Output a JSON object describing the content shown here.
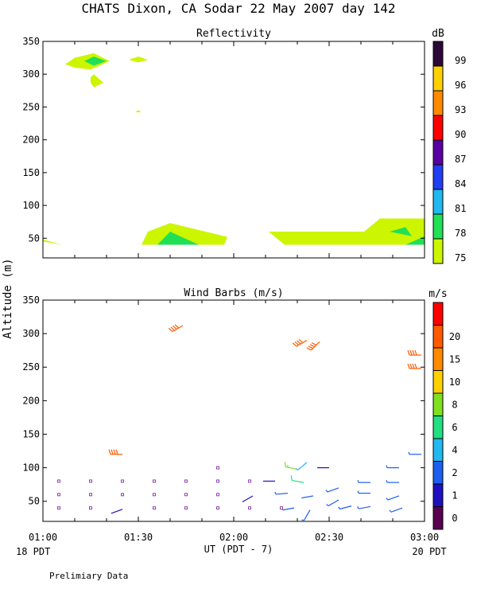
{
  "figure": {
    "title": "CHATS Dixon, CA  Sodar  22 May 2007  day 142",
    "ylabel": "Altitude (m)",
    "xlabel": "UT  (PDT - 7)",
    "left_time_label": "18 PDT",
    "right_time_label": "20 PDT",
    "footer": "Prelimiary Data"
  },
  "chart_data": [
    {
      "type": "heatmap",
      "title": "Reflectivity",
      "x_ticks": [
        "01:00",
        "01:30",
        "02:00",
        "02:30",
        "03:00"
      ],
      "x_range_minutes": [
        60,
        180
      ],
      "y_ticks": [
        50,
        100,
        150,
        200,
        250,
        300,
        350
      ],
      "ylim": [
        20,
        350
      ],
      "colorbar": {
        "unit": "dB",
        "levels": [
          75,
          78,
          81,
          84,
          87,
          90,
          93,
          96,
          99
        ],
        "colors": [
          "#ccf500",
          "#22e055",
          "#22b8f0",
          "#1f3ff0",
          "#5a00a0",
          "#ff0000",
          "#ff8a00",
          "#ffd000",
          "#2a0838"
        ]
      },
      "regions": [
        {
          "level": 75,
          "points": [
            [
              60,
              45
            ],
            [
              60,
              48
            ],
            [
              66,
              40
            ]
          ]
        },
        {
          "level": 75,
          "points": [
            [
              67,
              315
            ],
            [
              70,
              325
            ],
            [
              76,
              332
            ],
            [
              81,
              320
            ],
            [
              75,
              307
            ],
            [
              70,
              310
            ]
          ]
        },
        {
          "level": 78,
          "points": [
            [
              73,
              320
            ],
            [
              76,
              327
            ],
            [
              80,
              320
            ],
            [
              76,
              313
            ]
          ]
        },
        {
          "level": 75,
          "points": [
            [
              75,
              295
            ],
            [
              76,
              300
            ],
            [
              79,
              287
            ],
            [
              76,
              280
            ],
            [
              75,
              287
            ]
          ]
        },
        {
          "level": 75,
          "points": [
            [
              87,
              322
            ],
            [
              90,
              327
            ],
            [
              93,
              322
            ],
            [
              90,
              318
            ]
          ]
        },
        {
          "level": 75,
          "points": [
            [
              89,
              242
            ],
            [
              90,
              245
            ],
            [
              91,
              242
            ]
          ]
        },
        {
          "level": 75,
          "points": [
            [
              91,
              40
            ],
            [
              93,
              60
            ],
            [
              100,
              73
            ],
            [
              118,
              52
            ],
            [
              117,
              40
            ]
          ]
        },
        {
          "level": 78,
          "points": [
            [
              96,
              40
            ],
            [
              100,
              60
            ],
            [
              109,
              40
            ]
          ]
        },
        {
          "level": 75,
          "points": [
            [
              131,
              60
            ],
            [
              161,
              60
            ],
            [
              166,
              80
            ],
            [
              180,
              80
            ],
            [
              180,
              40
            ],
            [
              136,
              40
            ]
          ]
        },
        {
          "level": 78,
          "points": [
            [
              169,
              60
            ],
            [
              174,
              67
            ],
            [
              176,
              53
            ]
          ]
        },
        {
          "level": 78,
          "points": [
            [
              174,
              40
            ],
            [
              180,
              53
            ],
            [
              180,
              40
            ]
          ]
        }
      ]
    },
    {
      "type": "scatter",
      "title": "Wind Barbs (m/s)",
      "x_ticks": [
        "01:00",
        "01:30",
        "02:00",
        "02:30",
        "03:00"
      ],
      "x_range_minutes": [
        60,
        180
      ],
      "y_ticks": [
        50,
        100,
        150,
        200,
        250,
        300,
        350
      ],
      "ylim": [
        20,
        350
      ],
      "colorbar": {
        "unit": "m/s",
        "levels": [
          0,
          1,
          2,
          4,
          6,
          8,
          10,
          15,
          20
        ],
        "colors": [
          "#5a0050",
          "#2010c0",
          "#1f5ff0",
          "#22b8f0",
          "#22e080",
          "#80e020",
          "#ffd000",
          "#ff8a00",
          "#ff5a00",
          "#ff0000"
        ]
      },
      "calms": [
        {
          "t": 65,
          "z": 40
        },
        {
          "t": 65,
          "z": 60
        },
        {
          "t": 65,
          "z": 80
        },
        {
          "t": 75,
          "z": 40
        },
        {
          "t": 75,
          "z": 60
        },
        {
          "t": 75,
          "z": 80
        },
        {
          "t": 85,
          "z": 60
        },
        {
          "t": 85,
          "z": 80
        },
        {
          "t": 95,
          "z": 40
        },
        {
          "t": 95,
          "z": 60
        },
        {
          "t": 95,
          "z": 80
        },
        {
          "t": 105,
          "z": 40
        },
        {
          "t": 105,
          "z": 60
        },
        {
          "t": 105,
          "z": 80
        },
        {
          "t": 115,
          "z": 40
        },
        {
          "t": 115,
          "z": 60
        },
        {
          "t": 115,
          "z": 80
        },
        {
          "t": 115,
          "z": 100
        },
        {
          "t": 125,
          "z": 40
        },
        {
          "t": 125,
          "z": 80
        },
        {
          "t": 135,
          "z": 40
        }
      ],
      "barbs": [
        {
          "t": 85,
          "z": 38,
          "dir": 250,
          "speed": 1.5
        },
        {
          "t": 85,
          "z": 120,
          "dir": 270,
          "speed": 22
        },
        {
          "t": 104,
          "z": 312,
          "dir": 240,
          "speed": 22
        },
        {
          "t": 126,
          "z": 58,
          "dir": 240,
          "speed": 1.5
        },
        {
          "t": 133,
          "z": 80,
          "dir": 270,
          "speed": 1.5
        },
        {
          "t": 139,
          "z": 40,
          "dir": 260,
          "speed": 2
        },
        {
          "t": 137,
          "z": 62,
          "dir": 265,
          "speed": 3
        },
        {
          "t": 140,
          "z": 98,
          "dir": 280,
          "speed": 9
        },
        {
          "t": 142,
          "z": 78,
          "dir": 280,
          "speed": 6
        },
        {
          "t": 143,
          "z": 108,
          "dir": 230,
          "speed": 4
        },
        {
          "t": 144,
          "z": 37,
          "dir": 210,
          "speed": 3
        },
        {
          "t": 145,
          "z": 58,
          "dir": 260,
          "speed": 2
        },
        {
          "t": 143,
          "z": 290,
          "dir": 240,
          "speed": 22
        },
        {
          "t": 147,
          "z": 288,
          "dir": 225,
          "speed": 22
        },
        {
          "t": 150,
          "z": 100,
          "dir": 270,
          "speed": 1.5
        },
        {
          "t": 153,
          "z": 52,
          "dir": 240,
          "speed": 3
        },
        {
          "t": 153,
          "z": 70,
          "dir": 250,
          "speed": 3
        },
        {
          "t": 157,
          "z": 43,
          "dir": 255,
          "speed": 3
        },
        {
          "t": 163,
          "z": 42,
          "dir": 260,
          "speed": 3
        },
        {
          "t": 163,
          "z": 62,
          "dir": 270,
          "speed": 3
        },
        {
          "t": 163,
          "z": 78,
          "dir": 270,
          "speed": 3
        },
        {
          "t": 173,
          "z": 40,
          "dir": 250,
          "speed": 3
        },
        {
          "t": 172,
          "z": 58,
          "dir": 250,
          "speed": 3
        },
        {
          "t": 172,
          "z": 78,
          "dir": 270,
          "speed": 3
        },
        {
          "t": 172,
          "z": 100,
          "dir": 270,
          "speed": 3
        },
        {
          "t": 179,
          "z": 120,
          "dir": 270,
          "speed": 3
        },
        {
          "t": 179,
          "z": 248,
          "dir": 270,
          "speed": 22
        },
        {
          "t": 179,
          "z": 268,
          "dir": 270,
          "speed": 22
        }
      ]
    }
  ]
}
